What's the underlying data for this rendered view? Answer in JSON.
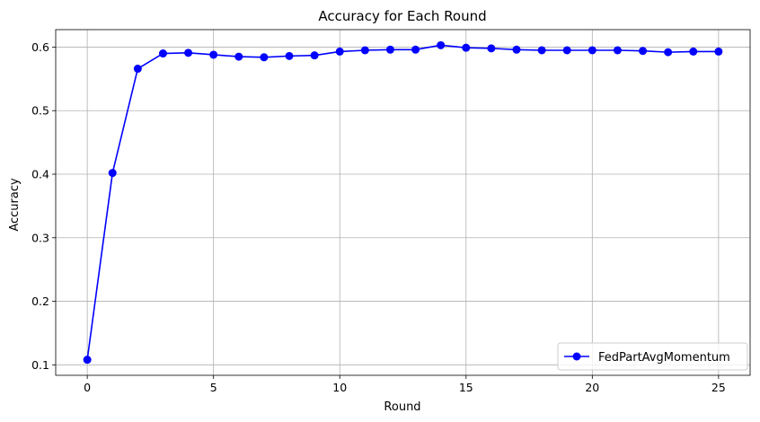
{
  "chart_data": {
    "type": "line",
    "title": "Accuracy for Each Round",
    "xlabel": "Round",
    "ylabel": "Accuracy",
    "xlim": [
      -1.25,
      26.25
    ],
    "ylim": [
      0.0835,
      0.6275
    ],
    "xticks": [
      0,
      5,
      10,
      15,
      20,
      25
    ],
    "yticks": [
      0.1,
      0.2,
      0.3,
      0.4,
      0.5,
      0.6
    ],
    "grid": true,
    "legend_position": "bottom-right",
    "series": [
      {
        "name": "FedPartAvgMomentum",
        "color": "#0000ff",
        "marker": "circle",
        "x": [
          0,
          1,
          2,
          3,
          4,
          5,
          6,
          7,
          8,
          9,
          10,
          11,
          12,
          13,
          14,
          15,
          16,
          17,
          18,
          19,
          20,
          21,
          22,
          23,
          24,
          25
        ],
        "values": [
          0.108,
          0.402,
          0.566,
          0.59,
          0.591,
          0.588,
          0.585,
          0.584,
          0.586,
          0.587,
          0.593,
          0.595,
          0.596,
          0.596,
          0.603,
          0.599,
          0.598,
          0.596,
          0.595,
          0.595,
          0.595,
          0.595,
          0.594,
          0.592,
          0.593,
          0.593
        ]
      }
    ]
  }
}
